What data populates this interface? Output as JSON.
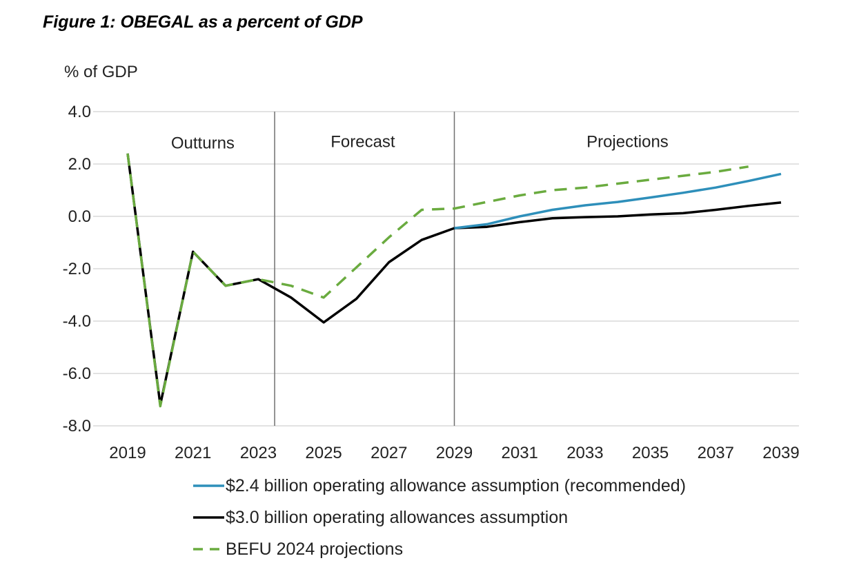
{
  "chart_data": {
    "type": "line",
    "title": "Figure 1: OBEGAL as a percent of GDP",
    "ylabel": "% of GDP",
    "ylim": [
      -8,
      4
    ],
    "yticks": [
      4.0,
      2.0,
      0.0,
      -2.0,
      -4.0,
      -6.0,
      -8.0
    ],
    "ytick_labels": [
      "4.0",
      "2.0",
      "0.0",
      "-2.0",
      "-4.0",
      "-6.0",
      "-8.0"
    ],
    "xlim": [
      2019,
      2039
    ],
    "xticks": [
      2019,
      2021,
      2023,
      2025,
      2027,
      2029,
      2031,
      2033,
      2035,
      2037,
      2039
    ],
    "xtick_labels": [
      "2019",
      "2021",
      "2023",
      "2025",
      "2027",
      "2029",
      "2031",
      "2033",
      "2035",
      "2037",
      "2039"
    ],
    "grid": "horizontal",
    "dividers": [
      2023.5,
      2029
    ],
    "regions": [
      {
        "label": "Outturns",
        "x": 2021.3,
        "y": 2.8
      },
      {
        "label": "Forecast",
        "x": 2026.2,
        "y": 2.85
      },
      {
        "label": "Projections",
        "x": 2034.3,
        "y": 2.85
      }
    ],
    "legend_position": "bottom",
    "series": [
      {
        "name": "$2.4 billion operating allowance assumption (recommended)",
        "color": "#2e8fba",
        "dash": "solid",
        "x": [
          2029,
          2030,
          2031,
          2032,
          2033,
          2034,
          2035,
          2036,
          2037,
          2038,
          2039
        ],
        "y": [
          -0.45,
          -0.3,
          0.0,
          0.25,
          0.42,
          0.55,
          0.72,
          0.9,
          1.1,
          1.35,
          1.62
        ]
      },
      {
        "name": "$3.0 billion operating allowances assumption",
        "color": "#000000",
        "dash": "solid",
        "x": [
          2019,
          2020,
          2021,
          2022,
          2023,
          2024,
          2025,
          2026,
          2027,
          2028,
          2029,
          2030,
          2031,
          2032,
          2033,
          2034,
          2035,
          2036,
          2037,
          2038,
          2039
        ],
        "y": [
          2.4,
          -7.2,
          -1.35,
          -2.65,
          -2.4,
          -3.1,
          -4.05,
          -3.15,
          -1.75,
          -0.9,
          -0.45,
          -0.4,
          -0.22,
          -0.07,
          -0.03,
          0.0,
          0.07,
          0.12,
          0.25,
          0.4,
          0.53
        ]
      },
      {
        "name": "BEFU 2024 projections",
        "color": "#6aab3f",
        "dash": "dashed",
        "x": [
          2019,
          2020,
          2021,
          2022,
          2023,
          2024,
          2025,
          2026,
          2027,
          2028,
          2029,
          2030,
          2031,
          2032,
          2033,
          2034,
          2035,
          2036,
          2037,
          2038
        ],
        "y": [
          2.4,
          -7.25,
          -1.35,
          -2.65,
          -2.4,
          -2.65,
          -3.1,
          -1.95,
          -0.8,
          0.25,
          0.3,
          0.55,
          0.8,
          1.0,
          1.1,
          1.25,
          1.4,
          1.55,
          1.7,
          1.9
        ]
      }
    ]
  }
}
